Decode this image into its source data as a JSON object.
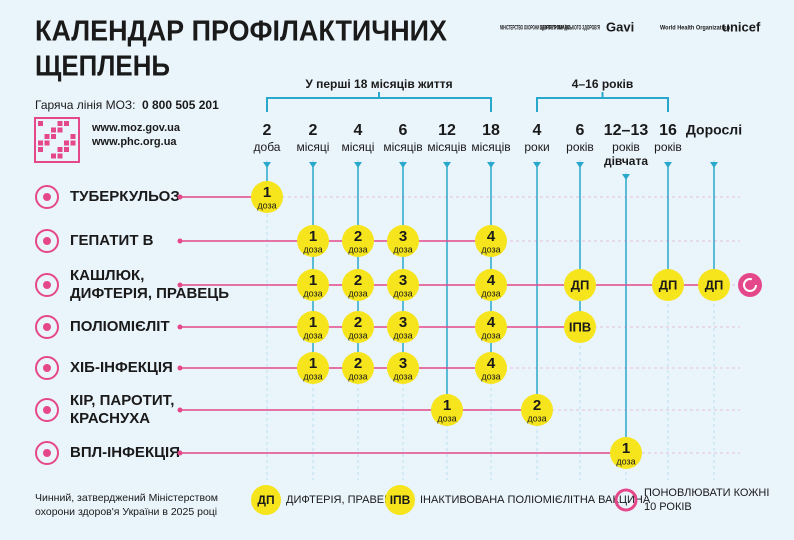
{
  "header": {
    "title_lines": [
      "КАЛЕНДАР ПРОФІЛАКТИЧНИХ",
      "ЩЕПЛЕНЬ"
    ],
    "hotline_label": "Гаряча лінія МОЗ:",
    "hotline_number": "0 800 505 201",
    "links": [
      "www.moz.gov.ua",
      "www.phc.org.ua"
    ],
    "logos": [
      "МІНІСТЕРСТВО ОХОРОНИ ЗДОРОВ'Я УКРАЇНИ",
      "ЦЕНТР ГРОМАДСЬКОГО ЗДОРОВ'Я",
      "Gavi",
      "World Health Organization",
      "unicef"
    ]
  },
  "groups": [
    "У перші 18 місяців життя",
    "4–16 років"
  ],
  "columns": [
    {
      "value": "2",
      "unit": "доба"
    },
    {
      "value": "2",
      "unit": "місяці"
    },
    {
      "value": "4",
      "unit": "місяці"
    },
    {
      "value": "6",
      "unit": "місяців"
    },
    {
      "value": "12",
      "unit": "місяців"
    },
    {
      "value": "18",
      "unit": "місяців"
    },
    {
      "value": "4",
      "unit": "роки"
    },
    {
      "value": "6",
      "unit": "років"
    },
    {
      "value": "12–13",
      "unit": "років",
      "note": "дівчата"
    },
    {
      "value": "16",
      "unit": "років"
    },
    {
      "value": "Дорослі"
    }
  ],
  "rows": [
    {
      "label": [
        "ТУБЕРКУЛЬОЗ"
      ],
      "cells": [
        {
          "label": "1",
          "sub": "доза"
        },
        null,
        null,
        null,
        null,
        null,
        null,
        null,
        null,
        null,
        null
      ]
    },
    {
      "label": [
        "ГЕПАТИТ В"
      ],
      "cells": [
        null,
        {
          "label": "1",
          "sub": "доза"
        },
        {
          "label": "2",
          "sub": "доза"
        },
        {
          "label": "3",
          "sub": "доза"
        },
        null,
        {
          "label": "4",
          "sub": "доза"
        },
        null,
        null,
        null,
        null,
        null
      ]
    },
    {
      "label": [
        "КАШЛЮК,",
        "ДИФТЕРІЯ, ПРАВЕЦЬ"
      ],
      "renew": true,
      "cells": [
        null,
        {
          "label": "1",
          "sub": "доза"
        },
        {
          "label": "2",
          "sub": "доза"
        },
        {
          "label": "3",
          "sub": "доза"
        },
        null,
        {
          "label": "4",
          "sub": "доза"
        },
        null,
        {
          "label": "ДП"
        },
        null,
        {
          "label": "ДП"
        },
        {
          "label": "ДП"
        }
      ]
    },
    {
      "label": [
        "ПОЛІОМІЄЛІТ"
      ],
      "cells": [
        null,
        {
          "label": "1",
          "sub": "доза"
        },
        {
          "label": "2",
          "sub": "доза"
        },
        {
          "label": "3",
          "sub": "доза"
        },
        null,
        {
          "label": "4",
          "sub": "доза"
        },
        null,
        {
          "label": "ІПВ"
        },
        null,
        null,
        null
      ]
    },
    {
      "label": [
        "ХІБ-ІНФЕКЦІЯ"
      ],
      "cells": [
        null,
        {
          "label": "1",
          "sub": "доза"
        },
        {
          "label": "2",
          "sub": "доза"
        },
        {
          "label": "3",
          "sub": "доза"
        },
        null,
        {
          "label": "4",
          "sub": "доза"
        },
        null,
        null,
        null,
        null,
        null
      ]
    },
    {
      "label": [
        "КІР, ПАРОТИТ,",
        "КРАСНУХА"
      ],
      "cells": [
        null,
        null,
        null,
        null,
        {
          "label": "1",
          "sub": "доза"
        },
        null,
        {
          "label": "2",
          "sub": "доза"
        },
        null,
        null,
        null,
        null
      ]
    },
    {
      "label": [
        "ВПЛ-ІНФЕКЦІЯ"
      ],
      "cells": [
        null,
        null,
        null,
        null,
        null,
        null,
        null,
        null,
        {
          "label": "1",
          "sub": "доза"
        },
        null,
        null
      ]
    }
  ],
  "legend": [
    {
      "mark": "ДП",
      "text": [
        "ДИФТЕРІЯ, ПРАВЕЦЬ"
      ]
    },
    {
      "mark": "ІПВ",
      "text": [
        "ІНАКТИВОВАНА ПОЛІОМІЄЛІТНА ВАКЦИНА"
      ]
    },
    {
      "text": [
        "ПОНОВЛЮВАТИ КОЖНІ",
        "10 РОКІВ"
      ]
    }
  ],
  "footnote": [
    "Чинний, затверджений Міністерством",
    "охорони здоров'я України в 2025 році"
  ]
}
